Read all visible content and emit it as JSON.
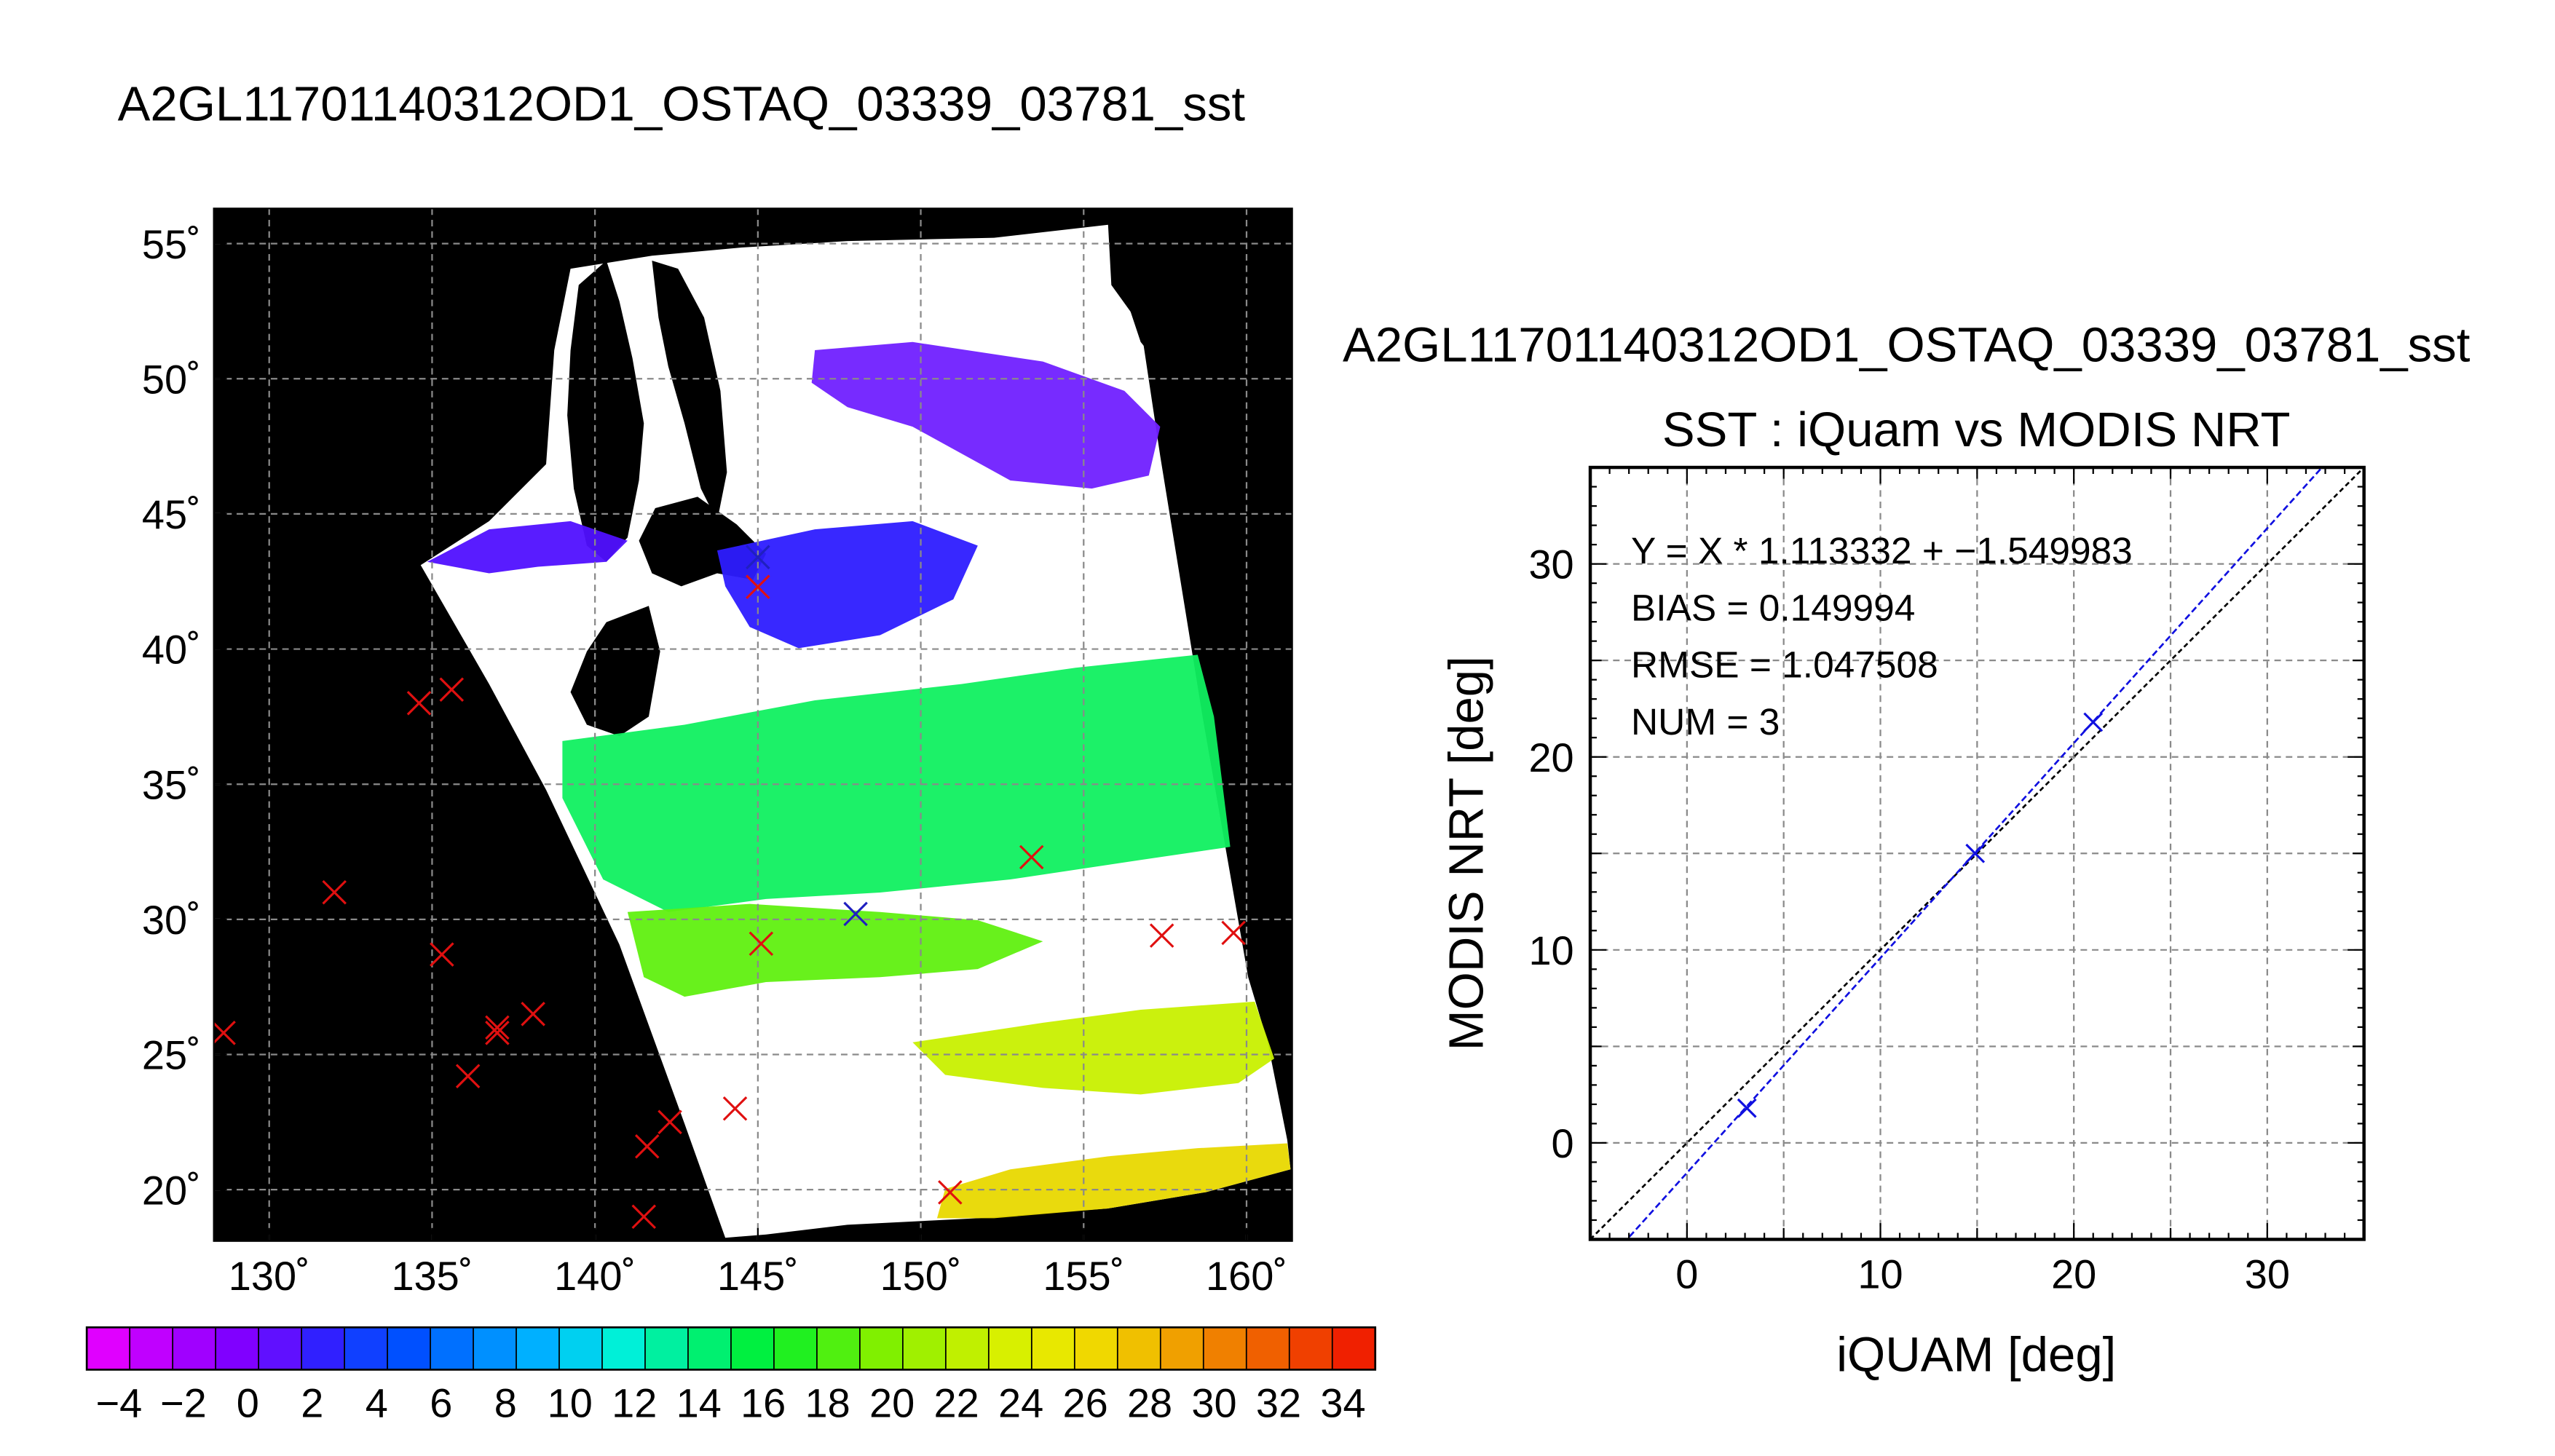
{
  "main_title": "A2GL11701140312OD1_OSTAQ_03339_03781_sst",
  "chart_data": [
    {
      "type": "map",
      "lon_ticks": [
        "130˚",
        "135˚",
        "140˚",
        "145˚",
        "150˚",
        "155˚",
        "160˚"
      ],
      "lon_values": [
        130,
        135,
        140,
        145,
        150,
        155,
        160
      ],
      "lat_ticks": [
        "55˚",
        "50˚",
        "45˚",
        "40˚",
        "35˚",
        "30˚",
        "25˚",
        "20˚"
      ],
      "lat_values": [
        55,
        50,
        45,
        40,
        35,
        30,
        25,
        20
      ],
      "lon_range": [
        128.3,
        161.4
      ],
      "lat_range": [
        18.1,
        56.3
      ],
      "grid": true,
      "colorbar": {
        "min": -5,
        "max": 35,
        "tick_labels": [
          "−4",
          "−2",
          "0",
          "2",
          "4",
          "6",
          "8",
          "10",
          "12",
          "14",
          "16",
          "18",
          "20",
          "22",
          "24",
          "26",
          "28",
          "30",
          "32",
          "34"
        ],
        "colors": [
          "#e000ff",
          "#c000ff",
          "#a000ff",
          "#8000ff",
          "#6010ff",
          "#3020ff",
          "#1040ff",
          "#0050ff",
          "#0070ff",
          "#0090ff",
          "#00b0ff",
          "#00d0f0",
          "#00f0d8",
          "#00f0a0",
          "#00f070",
          "#00f040",
          "#20f020",
          "#50f010",
          "#80f000",
          "#a0f000",
          "#c0f000",
          "#d8f000",
          "#e8e800",
          "#f0d800",
          "#f0c000",
          "#f0a000",
          "#f08000",
          "#f06000",
          "#f04000",
          "#f02000"
        ]
      },
      "buoys_red": [
        [
          128.6,
          25.8
        ],
        [
          132.0,
          31.0
        ],
        [
          134.6,
          38.0
        ],
        [
          135.6,
          38.5
        ],
        [
          135.3,
          28.7
        ],
        [
          137.0,
          26.0
        ],
        [
          137.0,
          25.8
        ],
        [
          138.1,
          26.5
        ],
        [
          136.1,
          24.2
        ],
        [
          141.6,
          21.6
        ],
        [
          142.3,
          22.5
        ],
        [
          141.5,
          19.0
        ],
        [
          144.3,
          23.0
        ],
        [
          145.1,
          29.1
        ],
        [
          153.4,
          32.3
        ],
        [
          157.4,
          29.4
        ],
        [
          159.6,
          29.5
        ],
        [
          150.9,
          19.9
        ],
        [
          145.0,
          42.3
        ]
      ],
      "buoys_blue": [
        [
          148.0,
          30.2
        ],
        [
          145.0,
          43.4
        ]
      ]
    },
    {
      "type": "scatter",
      "title": "A2GL11701140312OD1_OSTAQ_03339_03781_sst",
      "subtitle": "SST : iQuam vs MODIS NRT",
      "xlabel": "iQUAM [deg]",
      "ylabel": "MODIS NRT [deg]",
      "xlim": [
        -5,
        35
      ],
      "ylim": [
        -5,
        35
      ],
      "x_ticks": [
        0,
        10,
        20,
        30
      ],
      "y_ticks": [
        0,
        10,
        20,
        30
      ],
      "grid": true,
      "annotations": [
        "Y = X * 1.113332 + −1.549983",
        "BIAS = 0.149994",
        "RMSE = 1.047508",
        "NUM = 3"
      ],
      "fit": {
        "slope": 1.113332,
        "intercept": -1.549983
      },
      "points": [
        {
          "x": 3.1,
          "y": 1.8
        },
        {
          "x": 14.9,
          "y": 15.0
        },
        {
          "x": 21.0,
          "y": 21.8
        }
      ]
    }
  ]
}
